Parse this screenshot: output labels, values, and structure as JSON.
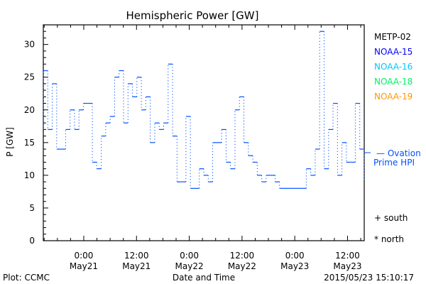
{
  "chart_data": {
    "type": "line",
    "title": "Hemispheric Power [GW]",
    "xlabel": "Date and Time",
    "ylabel": "P [GW]",
    "ylim": [
      0,
      33
    ],
    "yticks": [
      0,
      5,
      10,
      15,
      20,
      25,
      30
    ],
    "xlim_hours_from_May21_0000": [
      -9.2,
      63.8
    ],
    "xticks": [
      {
        "hour": 0,
        "time": "0:00",
        "date": "May21"
      },
      {
        "hour": 12,
        "time": "12:00",
        "date": "May21"
      },
      {
        "hour": 24,
        "time": "0:00",
        "date": "May22"
      },
      {
        "hour": 36,
        "time": "12:00",
        "date": "May22"
      },
      {
        "hour": 48,
        "time": "0:00",
        "date": "May23"
      },
      {
        "hour": 60,
        "time": "12:00",
        "date": "May23"
      }
    ],
    "series": [
      {
        "name": "Ovation Prime HPI",
        "color": "#0050ff",
        "start_value": 17,
        "values": [
          26,
          17,
          24,
          14,
          14,
          17,
          20,
          17,
          20,
          21,
          21,
          12,
          11,
          16,
          18,
          19,
          25,
          26,
          18,
          24,
          22,
          25,
          20,
          22,
          15,
          18,
          17,
          18,
          27,
          16,
          9,
          9,
          19,
          8,
          8,
          11,
          10,
          9,
          15,
          15,
          17,
          12,
          11,
          20,
          22,
          15,
          13,
          12,
          10,
          9,
          10,
          10,
          9,
          8,
          8,
          8,
          8,
          8,
          8,
          11,
          10,
          14,
          32,
          11,
          17,
          21,
          10,
          15,
          12,
          12,
          21,
          14
        ],
        "end_value": 9
      }
    ],
    "legend": [
      {
        "label": "METP-02",
        "color": "#000000"
      },
      {
        "label": "NOAA-15",
        "color": "#0000ff"
      },
      {
        "label": "NOAA-16",
        "color": "#00c8ff"
      },
      {
        "label": "NOAA-18",
        "color": "#00f064"
      },
      {
        "label": "NOAA-19",
        "color": "#ff9600"
      }
    ],
    "legend_placement": "right",
    "ovation_label_1": "— Ovation",
    "ovation_label_2": "Prime HPI",
    "marker_south": "+ south",
    "marker_north": "* north"
  },
  "footer": {
    "plot_credit": "Plot: CCMC",
    "timestamp": "2015/05/23 15:10:17"
  }
}
